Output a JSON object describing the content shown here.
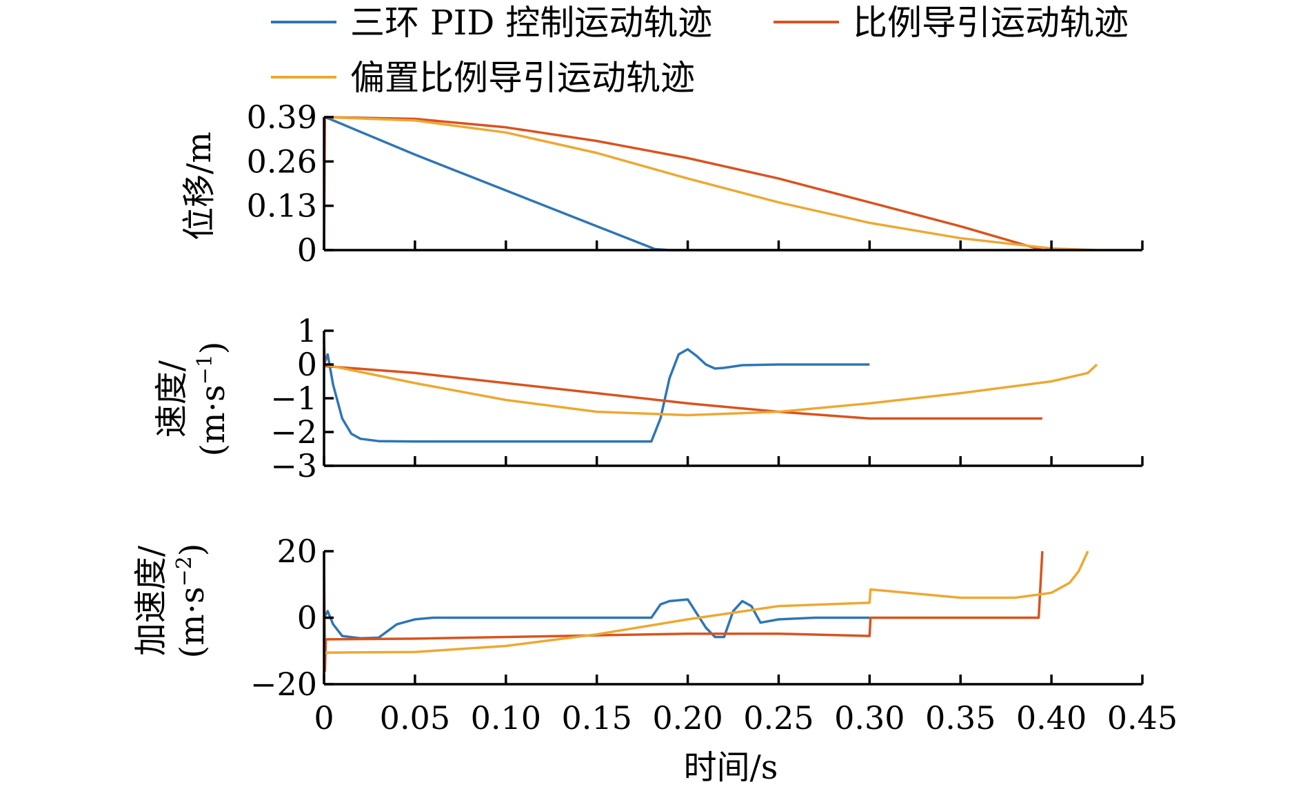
{
  "legend": {
    "items": [
      {
        "label": "三环 PID 控制运动轨迹",
        "color": "#2E75B6"
      },
      {
        "label": "比例导引运动轨迹",
        "color": "#D9531E"
      },
      {
        "label": "偏置比例导引运动轨迹",
        "color": "#EDA832"
      }
    ]
  },
  "chart_data": [
    {
      "type": "line",
      "title": "",
      "ylabel": "位移/m",
      "xlim": [
        0,
        0.45
      ],
      "ylim": [
        0,
        0.39
      ],
      "yticks": [
        0,
        0.13,
        0.26,
        0.39
      ],
      "ytick_labels": [
        "0",
        "0.13",
        "0.26",
        "0.39"
      ],
      "series": [
        {
          "name": "三环 PID 控制运动轨迹",
          "color": "#2E75B6",
          "x": [
            0,
            0.003,
            0.05,
            0.1,
            0.15,
            0.182,
            0.19,
            0.2,
            0.25,
            0.3
          ],
          "y": [
            0.39,
            0.385,
            0.28,
            0.175,
            0.07,
            0.003,
            0.0,
            0.0,
            0.0,
            0.0
          ]
        },
        {
          "name": "比例导引运动轨迹",
          "color": "#D9531E",
          "x": [
            0,
            0.0005,
            0.001,
            0.05,
            0.1,
            0.15,
            0.2,
            0.25,
            0.3,
            0.35,
            0.395
          ],
          "y": [
            0.0,
            0.39,
            0.39,
            0.385,
            0.36,
            0.32,
            0.27,
            0.21,
            0.14,
            0.07,
            0.0
          ]
        },
        {
          "name": "偏置比例导引运动轨迹",
          "color": "#EDA832",
          "x": [
            0,
            0.05,
            0.1,
            0.15,
            0.2,
            0.25,
            0.3,
            0.35,
            0.4,
            0.425
          ],
          "y": [
            0.39,
            0.38,
            0.345,
            0.285,
            0.21,
            0.14,
            0.08,
            0.035,
            0.005,
            0.0
          ]
        }
      ]
    },
    {
      "type": "line",
      "title": "",
      "ylabel": "速度/",
      "ylabel_unit": "(m·s",
      "ylabel_exp": "−1",
      "ylabel_close": ")",
      "xlim": [
        0,
        0.45
      ],
      "ylim": [
        -3,
        1
      ],
      "yticks": [
        -3,
        -2,
        -1,
        0,
        1
      ],
      "ytick_labels": [
        "−3",
        "−2",
        "−1",
        "0",
        "1"
      ],
      "series": [
        {
          "name": "三环 PID 控制运动轨迹",
          "color": "#2E75B6",
          "x": [
            0,
            0.002,
            0.005,
            0.01,
            0.015,
            0.02,
            0.03,
            0.05,
            0.1,
            0.15,
            0.18,
            0.185,
            0.19,
            0.195,
            0.2,
            0.205,
            0.21,
            0.215,
            0.22,
            0.23,
            0.25,
            0.3
          ],
          "y": [
            0.0,
            0.3,
            -0.6,
            -1.6,
            -2.05,
            -2.2,
            -2.27,
            -2.28,
            -2.28,
            -2.28,
            -2.28,
            -1.6,
            -0.4,
            0.3,
            0.45,
            0.25,
            0.0,
            -0.12,
            -0.1,
            -0.02,
            0.0,
            0.0
          ]
        },
        {
          "name": "比例导引运动轨迹",
          "color": "#D9531E",
          "x": [
            0,
            0.0005,
            0.001,
            0.05,
            0.1,
            0.15,
            0.2,
            0.25,
            0.3,
            0.35,
            0.395
          ],
          "y": [
            0.7,
            0.0,
            -0.05,
            -0.25,
            -0.55,
            -0.85,
            -1.15,
            -1.4,
            -1.6,
            -1.6,
            -1.6
          ]
        },
        {
          "name": "偏置比例导引运动轨迹",
          "color": "#EDA832",
          "x": [
            0,
            0.05,
            0.1,
            0.15,
            0.2,
            0.25,
            0.3,
            0.35,
            0.4,
            0.42,
            0.425
          ],
          "y": [
            0.0,
            -0.55,
            -1.05,
            -1.4,
            -1.5,
            -1.4,
            -1.15,
            -0.85,
            -0.5,
            -0.25,
            0.0
          ]
        }
      ]
    },
    {
      "type": "line",
      "title": "",
      "ylabel": "加速度/",
      "ylabel_unit": "(m·s",
      "ylabel_exp": "−2",
      "ylabel_close": ")",
      "xlabel": "时间/s",
      "xlim": [
        0,
        0.45
      ],
      "xticks": [
        0,
        0.05,
        0.1,
        0.15,
        0.2,
        0.25,
        0.3,
        0.35,
        0.4,
        0.45
      ],
      "xtick_labels": [
        "0",
        "0.05",
        "0.10",
        "0.15",
        "0.20",
        "0.25",
        "0.30",
        "0.35",
        "0.40",
        "0.45"
      ],
      "ylim": [
        -20,
        20
      ],
      "yticks": [
        -20,
        0,
        20
      ],
      "ytick_labels": [
        "−20",
        "0",
        "20"
      ],
      "series": [
        {
          "name": "三环 PID 控制运动轨迹",
          "color": "#2E75B6",
          "x": [
            0,
            0.002,
            0.005,
            0.01,
            0.02,
            0.03,
            0.035,
            0.04,
            0.05,
            0.06,
            0.1,
            0.15,
            0.18,
            0.185,
            0.19,
            0.2,
            0.21,
            0.215,
            0.22,
            0.225,
            0.23,
            0.235,
            0.24,
            0.25,
            0.27,
            0.3
          ],
          "y": [
            0,
            2,
            -2,
            -5.5,
            -6.2,
            -6,
            -4,
            -2,
            -0.5,
            0,
            0,
            0,
            0,
            4,
            5,
            5.5,
            -3,
            -5.8,
            -5.8,
            2,
            5,
            3.5,
            -1.5,
            -0.5,
            0,
            0
          ]
        },
        {
          "name": "比例导引运动轨迹",
          "color": "#D9531E",
          "x": [
            0,
            0.0005,
            0.001,
            0.002,
            0.05,
            0.1,
            0.15,
            0.2,
            0.25,
            0.3,
            0.3005,
            0.35,
            0.393,
            0.395
          ],
          "y": [
            20,
            -16,
            -6.5,
            -6.5,
            -6.3,
            -5.8,
            -5.3,
            -4.8,
            -4.8,
            -5.5,
            0,
            0,
            0,
            20
          ]
        },
        {
          "name": "偏置比例导引运动轨迹",
          "color": "#EDA832",
          "x": [
            0,
            0.05,
            0.1,
            0.15,
            0.2,
            0.25,
            0.3,
            0.3005,
            0.35,
            0.38,
            0.4,
            0.41,
            0.415,
            0.42
          ],
          "y": [
            -10.5,
            -10.3,
            -8.5,
            -5,
            -0.5,
            3.5,
            4.5,
            8.5,
            6,
            6,
            7.5,
            10.5,
            14,
            20
          ]
        }
      ]
    }
  ]
}
